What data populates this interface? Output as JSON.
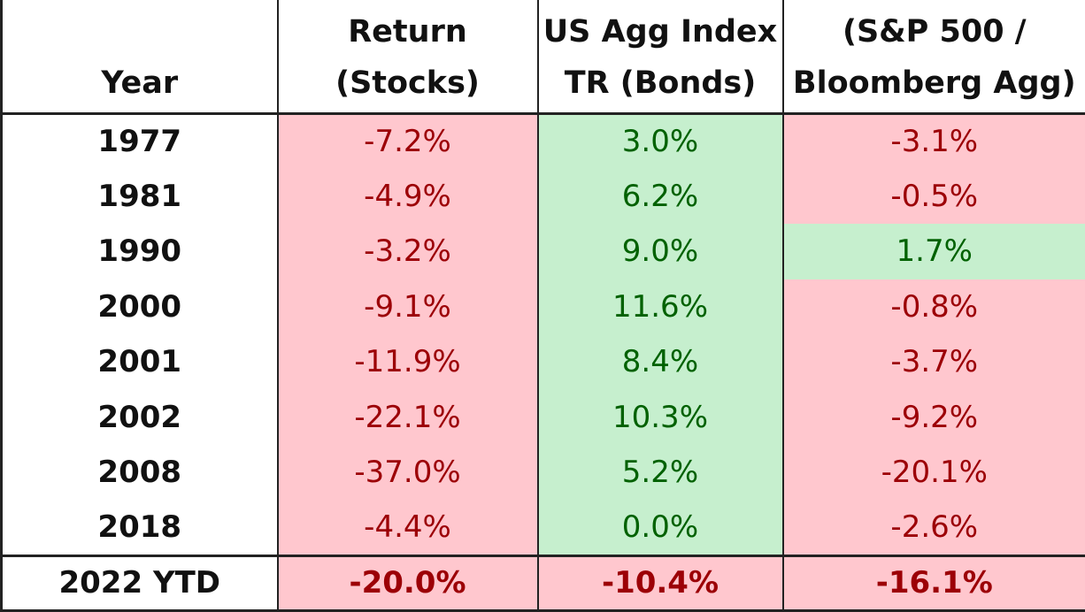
{
  "colors": {
    "negative_fill": "#ffc7ce",
    "negative_text": "#9c0006",
    "positive_fill": "#c6efce",
    "positive_text": "#006100"
  },
  "headers": {
    "year": {
      "line1": "",
      "line2": "Year"
    },
    "stocks": {
      "line1": "Return",
      "line2": "(Stocks)"
    },
    "bonds": {
      "line1": "US Agg Index",
      "line2": "TR (Bonds)"
    },
    "diff": {
      "line1": "(S&P 500 /",
      "line2": "Bloomberg Agg)"
    }
  },
  "rows": [
    {
      "year": "1977",
      "stocks": "-7.2%",
      "bonds": "3.0%",
      "diff": "-3.1%"
    },
    {
      "year": "1981",
      "stocks": "-4.9%",
      "bonds": "6.2%",
      "diff": "-0.5%"
    },
    {
      "year": "1990",
      "stocks": "-3.2%",
      "bonds": "9.0%",
      "diff": "1.7%"
    },
    {
      "year": "2000",
      "stocks": "-9.1%",
      "bonds": "11.6%",
      "diff": "-0.8%"
    },
    {
      "year": "2001",
      "stocks": "-11.9%",
      "bonds": "8.4%",
      "diff": "-3.7%"
    },
    {
      "year": "2002",
      "stocks": "-22.1%",
      "bonds": "10.3%",
      "diff": "-9.2%"
    },
    {
      "year": "2008",
      "stocks": "-37.0%",
      "bonds": "5.2%",
      "diff": "-20.1%"
    },
    {
      "year": "2018",
      "stocks": "-4.4%",
      "bonds": "0.0%",
      "diff": "-2.6%"
    }
  ],
  "total": {
    "year": "2022 YTD",
    "stocks": "-20.0%",
    "bonds": "-10.4%",
    "diff": "-16.1%"
  }
}
